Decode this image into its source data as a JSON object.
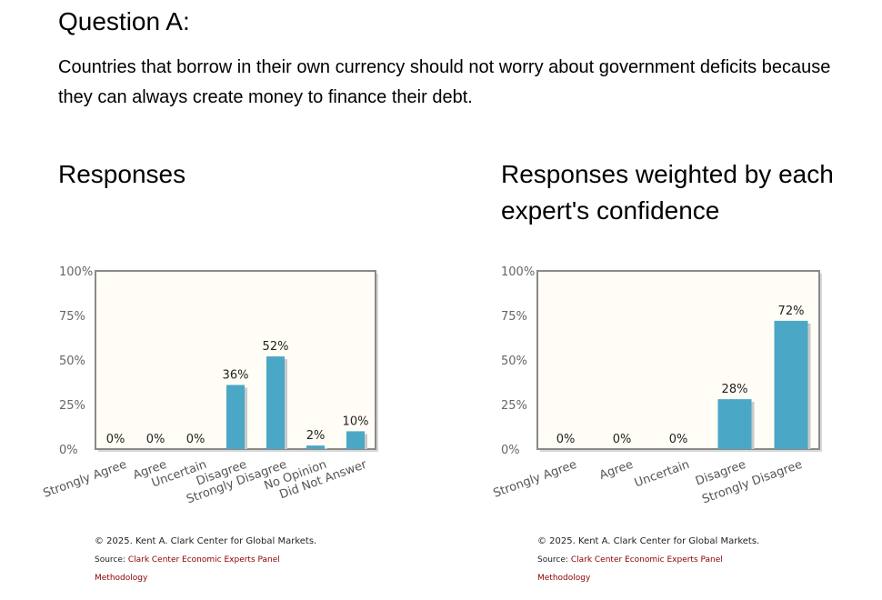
{
  "question": {
    "title": "Question A:",
    "text": "Countries that borrow in their own currency should not worry about government deficits because they can always create money to finance their debt."
  },
  "panels": [
    {
      "title": "Responses",
      "credits": {
        "copyright": "© 2025. Kent A. Clark Center for Global Markets.",
        "source_prefix": "Source: ",
        "source_link": "Clark Center Economic Experts Panel",
        "methodology": "Methodology"
      }
    },
    {
      "title": "Responses weighted by each expert's confidence",
      "credits": {
        "copyright": "© 2025. Kent A. Clark Center for Global Markets.",
        "source_prefix": "Source: ",
        "source_link": "Clark Center Economic Experts Panel",
        "methodology": "Methodology"
      }
    }
  ],
  "colors": {
    "bar": "#4aa8c6",
    "plot_bg": "#fffdf5",
    "frame": "#8a8a8a",
    "link": "#8b0000"
  },
  "chart_data": [
    {
      "type": "bar",
      "categories": [
        "Strongly Agree",
        "Agree",
        "Uncertain",
        "Disagree",
        "Strongly Disagree",
        "No Opinion",
        "Did Not Answer"
      ],
      "values": [
        0,
        0,
        0,
        36,
        52,
        2,
        10
      ],
      "data_labels": [
        "0%",
        "0%",
        "0%",
        "36%",
        "52%",
        "2%",
        "10%"
      ],
      "y_ticks": [
        "0%",
        "25%",
        "50%",
        "75%",
        "100%"
      ],
      "ylim": [
        0,
        100
      ],
      "title": "",
      "xlabel": "",
      "ylabel": "",
      "grid": false
    },
    {
      "type": "bar",
      "categories": [
        "Strongly Agree",
        "Agree",
        "Uncertain",
        "Disagree",
        "Strongly Disagree"
      ],
      "values": [
        0,
        0,
        0,
        28,
        72
      ],
      "data_labels": [
        "0%",
        "0%",
        "0%",
        "28%",
        "72%"
      ],
      "y_ticks": [
        "0%",
        "25%",
        "50%",
        "75%",
        "100%"
      ],
      "ylim": [
        0,
        100
      ],
      "title": "",
      "xlabel": "",
      "ylabel": "",
      "grid": false
    }
  ]
}
